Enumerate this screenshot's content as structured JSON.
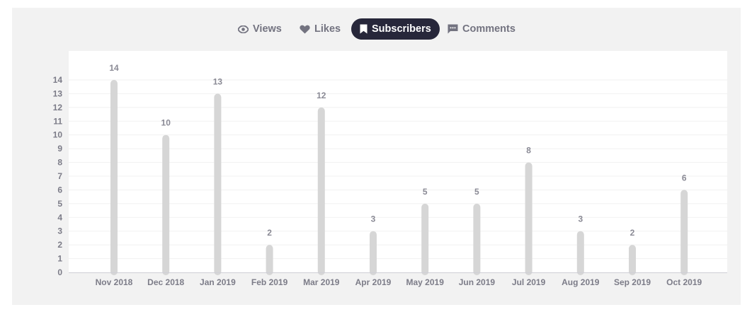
{
  "tabs": [
    {
      "label": "Views",
      "icon": "eye-icon",
      "active": false
    },
    {
      "label": "Likes",
      "icon": "heart-icon",
      "active": false
    },
    {
      "label": "Subscribers",
      "icon": "bookmark-icon",
      "active": true
    },
    {
      "label": "Comments",
      "icon": "comment-icon",
      "active": false
    }
  ],
  "colors": {
    "bar": "#d6d6d6",
    "active_tab_bg": "#27273a",
    "panel_bg": "#f2f2f2"
  },
  "chart_data": {
    "type": "bar",
    "categories": [
      "Nov 2018",
      "Dec 2018",
      "Jan 2019",
      "Feb 2019",
      "Mar 2019",
      "Apr 2019",
      "May 2019",
      "Jun 2019",
      "Jul 2019",
      "Aug 2019",
      "Sep 2019",
      "Oct 2019"
    ],
    "values": [
      14,
      10,
      13,
      2,
      12,
      3,
      5,
      5,
      8,
      3,
      2,
      6
    ],
    "ylim": [
      0,
      14
    ],
    "yticks": [
      0,
      1,
      2,
      3,
      4,
      5,
      6,
      7,
      8,
      9,
      10,
      11,
      12,
      13,
      14
    ],
    "grid": true,
    "data_labels": true
  }
}
